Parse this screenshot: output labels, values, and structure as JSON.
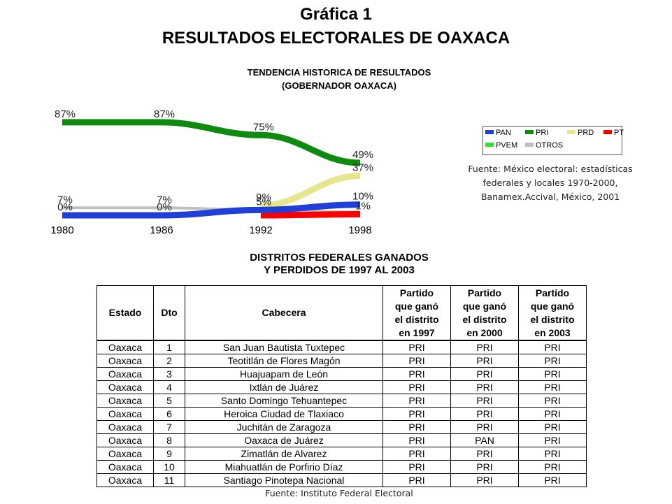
{
  "header": {
    "title": "Gráfica 1",
    "subtitle": "RESULTADOS ELECTORALES DE OAXACA"
  },
  "chart_data": {
    "type": "line",
    "title": "TENDENCIA HISTORICA  DE RESULTADOS",
    "subtitle": "(GOBERNADOR OAXACA)",
    "categories": [
      "1980",
      "1986",
      "1992",
      "1998"
    ],
    "ylim": [
      0,
      100
    ],
    "grid": false,
    "legend_position": "right",
    "series": [
      {
        "name": "PAN",
        "color": "#1f3fd6",
        "values": [
          0,
          0,
          5,
          10
        ]
      },
      {
        "name": "PRI",
        "color": "#0e8a0e",
        "values": [
          87,
          87,
          75,
          49
        ]
      },
      {
        "name": "PRD",
        "color": "#e6e68c",
        "values": [
          null,
          null,
          9,
          37
        ]
      },
      {
        "name": "PT",
        "color": "#ff0000",
        "values": [
          null,
          null,
          0,
          1
        ]
      },
      {
        "name": "PVEM",
        "color": "#33dd33",
        "values": [
          null,
          null,
          null,
          null
        ]
      },
      {
        "name": "OTROS",
        "color": "#c0c0c0",
        "values": [
          7,
          7,
          5,
          3
        ]
      }
    ],
    "data_labels": [
      {
        "series": "PRI",
        "index": 0,
        "text": "87%"
      },
      {
        "series": "PRI",
        "index": 1,
        "text": "87%"
      },
      {
        "series": "PRI",
        "index": 2,
        "text": "75%"
      },
      {
        "series": "PRI",
        "index": 3,
        "text": "49%"
      },
      {
        "series": "PRD",
        "index": 3,
        "text": "37%"
      },
      {
        "series": "PAN",
        "index": 3,
        "text": "10%"
      },
      {
        "series": "PT",
        "index": 3,
        "text": "1%"
      },
      {
        "series": "PRD",
        "index": 2,
        "text": "9%"
      },
      {
        "series": "PAN",
        "index": 2,
        "text": "5%"
      },
      {
        "series": "OTROS",
        "index": 0,
        "text": "7%"
      },
      {
        "series": "PAN",
        "index": 0,
        "text": "0%"
      },
      {
        "series": "OTROS",
        "index": 1,
        "text": "7%"
      },
      {
        "series": "PAN",
        "index": 1,
        "text": "0%"
      }
    ]
  },
  "chart_source": {
    "line1": "Fuente: México electoral: estadísticas",
    "line2": "federales y locales 1970-2000,",
    "line3": "Banamex.Accival, México, 2001"
  },
  "table": {
    "title_line1": "DISTRITOS FEDERALES GANADOS",
    "title_line2": "Y PERDIDOS DE 1997 AL 2003",
    "headers": {
      "estado": "Estado",
      "dto": "Dto",
      "cabecera": "Cabecera",
      "p1997": [
        "Partido",
        "que ganó",
        "el distrito",
        "en 1997"
      ],
      "p2000": [
        "Partido",
        "que ganó",
        "el distrito",
        "en 2000"
      ],
      "p2003": [
        "Partido",
        "que ganó",
        "el distrito",
        "en 2003"
      ]
    },
    "rows": [
      [
        "Oaxaca",
        "1",
        "San Juan Bautista Tuxtepec",
        "PRI",
        "PRI",
        "PRI"
      ],
      [
        "Oaxaca",
        "2",
        "Teotitlán de Flores Magón",
        "PRI",
        "PRI",
        "PRI"
      ],
      [
        "Oaxaca",
        "3",
        "Huajuapam de León",
        "PRI",
        "PRI",
        "PRI"
      ],
      [
        "Oaxaca",
        "4",
        "Ixtlán de Juárez",
        "PRI",
        "PRI",
        "PRI"
      ],
      [
        "Oaxaca",
        "5",
        "Santo Domingo Tehuantepec",
        "PRI",
        "PRI",
        "PRI"
      ],
      [
        "Oaxaca",
        "6",
        "Heroica Ciudad de Tlaxiaco",
        "PRI",
        "PRI",
        "PRI"
      ],
      [
        "Oaxaca",
        "7",
        "Juchitán de Zaragoza",
        "PRI",
        "PRI",
        "PRI"
      ],
      [
        "Oaxaca",
        "8",
        "Oaxaca de Juárez",
        "PRI",
        "PAN",
        "PRI"
      ],
      [
        "Oaxaca",
        "9",
        "Zimatlán de Alvarez",
        "PRI",
        "PRI",
        "PRI"
      ],
      [
        "Oaxaca",
        "10",
        "Miahuatlán de Porfirio Díaz",
        "PRI",
        "PRI",
        "PRI"
      ],
      [
        "Oaxaca",
        "11",
        "Santiago Pinotepa Nacional",
        "PRI",
        "PRI",
        "PRI"
      ]
    ],
    "source": "Fuente: Instituto Federal Electoral"
  }
}
